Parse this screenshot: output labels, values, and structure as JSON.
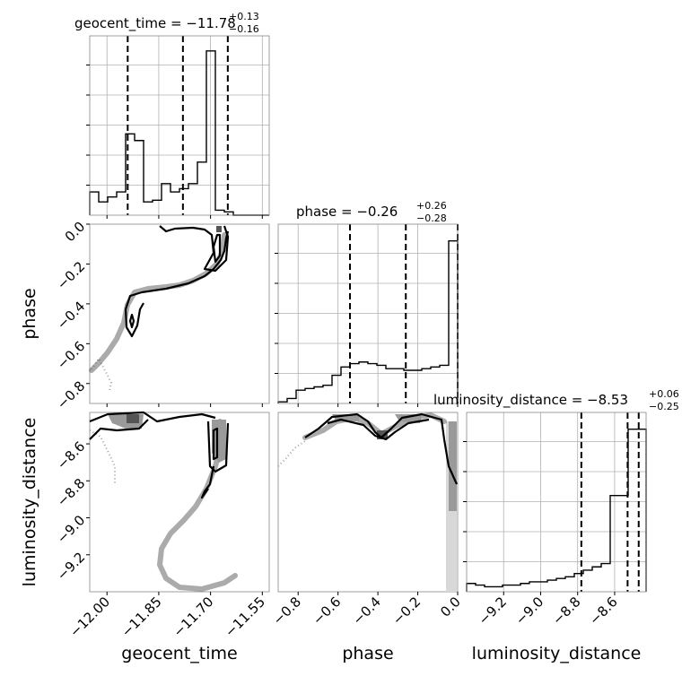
{
  "chart_data": {
    "type": "corner",
    "parameters": [
      "geocent_time",
      "phase",
      "luminosity_distance"
    ],
    "axes": {
      "geocent_time": {
        "label": "geocent_time",
        "range": [
          -12.05,
          -11.53
        ],
        "ticks": [
          "−12.00",
          "−11.85",
          "−11.70",
          "−11.55"
        ],
        "tick_values": [
          -12.0,
          -11.85,
          -11.7,
          -11.55
        ]
      },
      "phase": {
        "label": "phase",
        "range": [
          -0.9,
          0.0
        ],
        "ticks": [
          "−0.8",
          "−0.6",
          "−0.4",
          "−0.2",
          "0.0"
        ],
        "tick_values": [
          -0.8,
          -0.6,
          -0.4,
          -0.2,
          0.0
        ]
      },
      "luminosity_distance": {
        "label": "luminosity_distance",
        "range": [
          -9.4,
          -8.43
        ],
        "ticks": [
          "−9.2",
          "−9.0",
          "−8.8",
          "−8.6"
        ],
        "tick_values": [
          -9.2,
          -9.0,
          -8.8,
          -8.6
        ]
      }
    },
    "titles": [
      {
        "param": "geocent_time",
        "text": "geocent_time = −11.78",
        "sup": "+0.13",
        "sub": "−0.16"
      },
      {
        "param": "phase",
        "text": "phase = −0.26",
        "sup": "+0.26",
        "sub": "−0.28"
      },
      {
        "param": "luminosity_distance",
        "text": "luminosity_distance = −8.53",
        "sup": "+0.06",
        "sub": "−0.25"
      }
    ],
    "marginals": {
      "geocent_time": {
        "bins": [
          -12.05,
          -12.024,
          -11.998,
          -11.972,
          -11.946,
          -11.92,
          -11.894,
          -11.868,
          -11.842,
          -11.816,
          -11.79,
          -11.764,
          -11.738,
          -11.712,
          -11.686,
          -11.66,
          -11.634,
          -11.608,
          -11.582,
          -11.556,
          -11.53
        ],
        "counts": [
          0.14,
          0.08,
          0.11,
          0.14,
          0.49,
          0.45,
          0.08,
          0.09,
          0.19,
          0.14,
          0.16,
          0.19,
          0.32,
          0.99,
          0.03,
          0.02,
          0.0,
          0.0,
          0.0,
          0.0
        ],
        "quantiles": [
          -11.94,
          -11.78,
          -11.65
        ]
      },
      "phase": {
        "bins": [
          -0.9,
          -0.855,
          -0.81,
          -0.765,
          -0.72,
          -0.675,
          -0.63,
          -0.585,
          -0.54,
          -0.495,
          -0.45,
          -0.405,
          -0.36,
          -0.315,
          -0.27,
          -0.225,
          -0.18,
          -0.135,
          -0.09,
          -0.045,
          0.0
        ],
        "counts": [
          0.01,
          0.03,
          0.08,
          0.09,
          0.1,
          0.11,
          0.17,
          0.22,
          0.24,
          0.25,
          0.24,
          0.23,
          0.21,
          0.21,
          0.2,
          0.2,
          0.21,
          0.22,
          0.23,
          0.98
        ],
        "quantiles": [
          -0.54,
          -0.26,
          0.0
        ]
      },
      "luminosity_distance": {
        "bins": [
          -9.4,
          -9.3515,
          -9.303,
          -9.2545,
          -9.206,
          -9.1575,
          -9.109,
          -9.0605,
          -9.012,
          -8.9635,
          -8.915,
          -8.8665,
          -8.818,
          -8.7695,
          -8.721,
          -8.6725,
          -8.624,
          -8.5755,
          -8.527,
          -8.4785,
          -8.43
        ],
        "counts": [
          0.05,
          0.04,
          0.03,
          0.03,
          0.04,
          0.04,
          0.05,
          0.06,
          0.06,
          0.07,
          0.08,
          0.09,
          0.11,
          0.13,
          0.15,
          0.17,
          0.58,
          0.58,
          0.98,
          0.98
        ],
        "quantiles": [
          -8.78,
          -8.53,
          -8.47
        ]
      }
    },
    "grid": true
  }
}
